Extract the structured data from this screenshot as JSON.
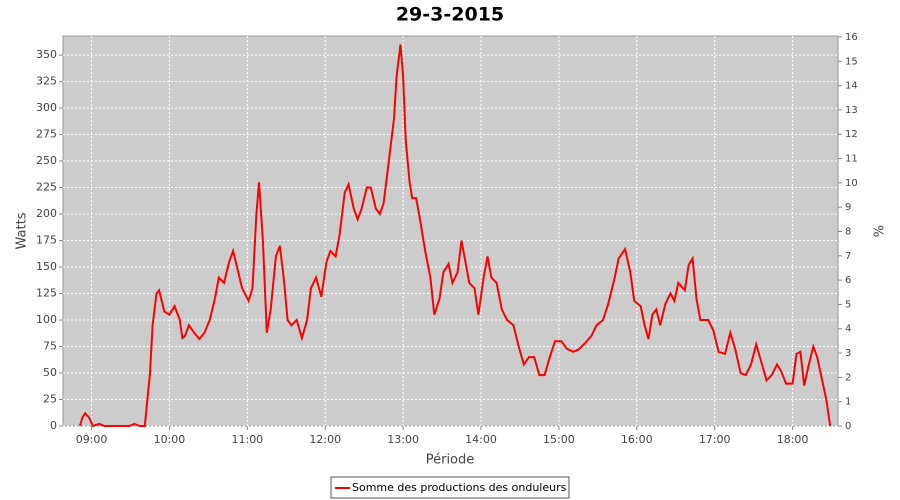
{
  "chart_data": {
    "type": "line",
    "title": "29-3-2015",
    "x_label": "Période",
    "y_label": "Watts",
    "y2_label": "%",
    "x": [
      "08:51",
      "08:53",
      "08:55",
      "08:58",
      "09:01",
      "09:06",
      "09:10",
      "09:29",
      "09:33",
      "09:37",
      "09:41",
      "09:45",
      "09:47",
      "09:50",
      "09:52",
      "09:56",
      "10:00",
      "10:04",
      "10:08",
      "10:10",
      "10:12",
      "10:15",
      "10:19",
      "10:23",
      "10:27",
      "10:31",
      "10:35",
      "10:38",
      "10:42",
      "10:46",
      "10:49",
      "10:52",
      "10:56",
      "11:01",
      "11:04",
      "11:07",
      "11:09",
      "11:12",
      "11:15",
      "11:18",
      "11:22",
      "11:25",
      "11:28",
      "11:31",
      "11:34",
      "11:38",
      "11:42",
      "11:46",
      "11:49",
      "11:53",
      "11:57",
      "12:01",
      "12:04",
      "12:08",
      "12:11",
      "12:15",
      "12:18",
      "12:22",
      "12:25",
      "12:28",
      "12:32",
      "12:35",
      "12:39",
      "12:42",
      "12:45",
      "12:49",
      "12:53",
      "12:55",
      "12:58",
      "13:00",
      "13:02",
      "13:05",
      "13:07",
      "13:10",
      "13:13",
      "13:17",
      "13:21",
      "13:24",
      "13:28",
      "13:31",
      "13:35",
      "13:38",
      "13:42",
      "13:45",
      "13:48",
      "13:51",
      "13:55",
      "13:58",
      "14:02",
      "14:05",
      "14:08",
      "14:12",
      "14:16",
      "14:20",
      "14:25",
      "14:29",
      "14:33",
      "14:37",
      "14:41",
      "14:45",
      "14:49",
      "14:53",
      "14:57",
      "15:02",
      "15:06",
      "15:11",
      "15:15",
      "15:20",
      "15:25",
      "15:29",
      "15:34",
      "15:38",
      "15:43",
      "15:46",
      "15:51",
      "15:55",
      "15:58",
      "16:03",
      "16:06",
      "16:09",
      "16:12",
      "16:15",
      "16:18",
      "16:22",
      "16:26",
      "16:29",
      "16:32",
      "16:37",
      "16:40",
      "16:43",
      "16:46",
      "16:49",
      "16:55",
      "16:59",
      "17:03",
      "17:08",
      "17:12",
      "17:16",
      "17:20",
      "17:24",
      "17:28",
      "17:32",
      "17:36",
      "17:40",
      "17:44",
      "17:48",
      "17:51",
      "17:55",
      "18:00",
      "18:03",
      "18:06",
      "18:09",
      "18:12",
      "18:16",
      "18:19",
      "18:23",
      "18:26",
      "18:29"
    ],
    "series": [
      {
        "name": "Somme des productions des onduleurs",
        "color": "#ff0000",
        "values": [
          0,
          8,
          12,
          8,
          0,
          2,
          0,
          0,
          2,
          0,
          0,
          50,
          95,
          125,
          128,
          108,
          105,
          113,
          100,
          83,
          85,
          95,
          88,
          82,
          88,
          100,
          120,
          140,
          135,
          155,
          165,
          150,
          130,
          118,
          130,
          200,
          230,
          175,
          88,
          110,
          160,
          170,
          140,
          100,
          95,
          100,
          83,
          100,
          130,
          140,
          122,
          155,
          165,
          160,
          180,
          220,
          228,
          205,
          195,
          205,
          225,
          225,
          205,
          200,
          210,
          250,
          290,
          330,
          360,
          330,
          270,
          230,
          215,
          215,
          195,
          165,
          140,
          105,
          120,
          145,
          153,
          135,
          145,
          175,
          155,
          135,
          130,
          105,
          140,
          160,
          140,
          135,
          110,
          100,
          95,
          75,
          58,
          65,
          65,
          48,
          48,
          65,
          80,
          80,
          73,
          70,
          72,
          78,
          85,
          95,
          100,
          115,
          140,
          158,
          167,
          145,
          118,
          113,
          95,
          82,
          105,
          110,
          95,
          115,
          125,
          118,
          135,
          128,
          152,
          158,
          120,
          100,
          100,
          90,
          70,
          68,
          88,
          72,
          50,
          48,
          58,
          77,
          60,
          43,
          48,
          58,
          52,
          40,
          40,
          68,
          70,
          38,
          55,
          75,
          65,
          42,
          25,
          0
        ]
      }
    ],
    "xlim": [
      "08:38",
      "18:35"
    ],
    "xticks": [
      "09:00",
      "10:00",
      "11:00",
      "12:00",
      "13:00",
      "14:00",
      "15:00",
      "16:00",
      "17:00",
      "18:00"
    ],
    "ylim": [
      0,
      368
    ],
    "yticks": [
      0,
      25,
      50,
      75,
      100,
      125,
      150,
      175,
      200,
      225,
      250,
      275,
      300,
      325,
      350
    ],
    "y2lim": [
      0,
      16.04
    ],
    "y2ticks": [
      0,
      1,
      2,
      3,
      4,
      5,
      6,
      7,
      8,
      9,
      10,
      11,
      12,
      13,
      14,
      15,
      16
    ],
    "grid": true,
    "legend": "bottom"
  }
}
